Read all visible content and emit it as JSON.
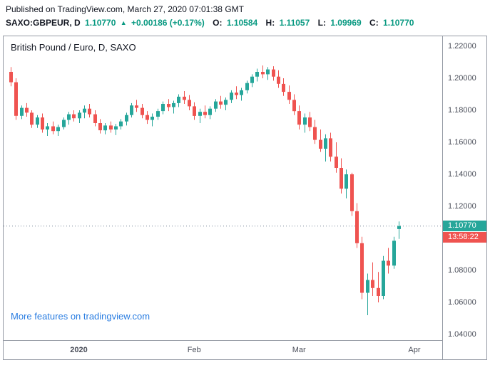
{
  "header": {
    "published_line": "Published on TradingView.com, March 27, 2020 07:01:38 GMT",
    "symbol_line": {
      "symbol": "SAXO:GBPEUR, D",
      "last_price": "1.10770",
      "direction_arrow": "▲",
      "change": "+0.00186 (+0.17%)",
      "ohlc": [
        {
          "label": "O:",
          "value": "1.10584"
        },
        {
          "label": "H:",
          "value": "1.11057"
        },
        {
          "label": "L:",
          "value": "1.09969"
        },
        {
          "label": "C:",
          "value": "1.10770"
        }
      ]
    }
  },
  "chart": {
    "title": "British Pound / Euro, D, SAXO",
    "watermark": "More features on tradingview.com",
    "last_price_label": "1.10770",
    "countdown": "13:58:22",
    "colors": {
      "up": "#26a69a",
      "down": "#ef5350",
      "teal_text": "#089981",
      "price_line": "#758696",
      "watermark": "#2a7de1",
      "axis_text": "#4a4e59",
      "border": "#959aa4"
    }
  },
  "chart_data": {
    "type": "candlestick",
    "title": "British Pound / Euro, D, SAXO",
    "symbol": "GBP/EUR",
    "interval": "D",
    "exchange": "SAXO",
    "ylim": [
      1.04,
      1.22
    ],
    "y_ticks": [
      1.04,
      1.06,
      1.08,
      1.1,
      1.12,
      1.14,
      1.16,
      1.18,
      1.2,
      1.22
    ],
    "x_ticks": [
      {
        "label": "2020",
        "index": 13,
        "major": true
      },
      {
        "label": "Feb",
        "index": 35,
        "major": false
      },
      {
        "label": "Mar",
        "index": 55,
        "major": false
      },
      {
        "label": "Apr",
        "index": 77,
        "major": false
      }
    ],
    "grid": false,
    "legend": false,
    "last_close": 1.1077,
    "candles": [
      [
        1.204,
        1.207,
        1.195,
        1.1975
      ],
      [
        1.1975,
        1.2,
        1.174,
        1.1765
      ],
      [
        1.1765,
        1.183,
        1.1745,
        1.1815
      ],
      [
        1.1815,
        1.1845,
        1.176,
        1.1785
      ],
      [
        1.1785,
        1.18,
        1.169,
        1.171
      ],
      [
        1.171,
        1.177,
        1.169,
        1.1755
      ],
      [
        1.1755,
        1.178,
        1.166,
        1.168
      ],
      [
        1.168,
        1.172,
        1.164,
        1.17
      ],
      [
        1.17,
        1.173,
        1.165,
        1.167
      ],
      [
        1.167,
        1.171,
        1.164,
        1.1695
      ],
      [
        1.1695,
        1.1755,
        1.168,
        1.174
      ],
      [
        1.174,
        1.179,
        1.171,
        1.1775
      ],
      [
        1.1775,
        1.18,
        1.173,
        1.175
      ],
      [
        1.175,
        1.18,
        1.172,
        1.1785
      ],
      [
        1.1785,
        1.183,
        1.175,
        1.181
      ],
      [
        1.181,
        1.184,
        1.1755,
        1.1775
      ],
      [
        1.1775,
        1.18,
        1.17,
        1.172
      ],
      [
        1.172,
        1.1745,
        1.1655,
        1.1675
      ],
      [
        1.1675,
        1.172,
        1.165,
        1.1705
      ],
      [
        1.1705,
        1.173,
        1.166,
        1.168
      ],
      [
        1.168,
        1.1715,
        1.1645,
        1.17
      ],
      [
        1.17,
        1.1745,
        1.168,
        1.173
      ],
      [
        1.173,
        1.1785,
        1.1705,
        1.177
      ],
      [
        1.177,
        1.1845,
        1.1755,
        1.183
      ],
      [
        1.183,
        1.1865,
        1.179,
        1.1815
      ],
      [
        1.1815,
        1.184,
        1.175,
        1.177
      ],
      [
        1.177,
        1.1795,
        1.1715,
        1.174
      ],
      [
        1.174,
        1.178,
        1.17,
        1.176
      ],
      [
        1.176,
        1.181,
        1.174,
        1.1795
      ],
      [
        1.1795,
        1.1855,
        1.1775,
        1.184
      ],
      [
        1.184,
        1.187,
        1.1795,
        1.182
      ],
      [
        1.182,
        1.186,
        1.178,
        1.1845
      ],
      [
        1.1845,
        1.19,
        1.182,
        1.1885
      ],
      [
        1.1885,
        1.192,
        1.184,
        1.1865
      ],
      [
        1.1865,
        1.1895,
        1.18,
        1.1825
      ],
      [
        1.1825,
        1.185,
        1.174,
        1.1765
      ],
      [
        1.1765,
        1.181,
        1.172,
        1.179
      ],
      [
        1.179,
        1.183,
        1.175,
        1.177
      ],
      [
        1.177,
        1.1825,
        1.1745,
        1.181
      ],
      [
        1.181,
        1.187,
        1.179,
        1.1855
      ],
      [
        1.1855,
        1.189,
        1.181,
        1.1835
      ],
      [
        1.1835,
        1.188,
        1.18,
        1.1865
      ],
      [
        1.1865,
        1.1925,
        1.1845,
        1.191
      ],
      [
        1.191,
        1.195,
        1.187,
        1.1895
      ],
      [
        1.1895,
        1.194,
        1.186,
        1.1925
      ],
      [
        1.1925,
        1.1985,
        1.1905,
        1.197
      ],
      [
        1.197,
        1.2025,
        1.1945,
        1.201
      ],
      [
        1.201,
        1.206,
        1.198,
        1.204
      ],
      [
        1.204,
        1.208,
        1.2,
        1.2025
      ],
      [
        1.2025,
        1.207,
        1.199,
        1.2055
      ],
      [
        1.2055,
        1.2075,
        1.1985,
        1.201
      ],
      [
        1.201,
        1.205,
        1.194,
        1.1965
      ],
      [
        1.1965,
        1.2,
        1.189,
        1.1915
      ],
      [
        1.1915,
        1.1955,
        1.184,
        1.1865
      ],
      [
        1.1865,
        1.19,
        1.177,
        1.1795
      ],
      [
        1.1795,
        1.183,
        1.168,
        1.171
      ],
      [
        1.171,
        1.178,
        1.166,
        1.1755
      ],
      [
        1.1755,
        1.179,
        1.167,
        1.1695
      ],
      [
        1.1695,
        1.174,
        1.159,
        1.1615
      ],
      [
        1.1615,
        1.168,
        1.154,
        1.156
      ],
      [
        1.156,
        1.165,
        1.148,
        1.1625
      ],
      [
        1.1625,
        1.166,
        1.148,
        1.151
      ],
      [
        1.151,
        1.16,
        1.141,
        1.144
      ],
      [
        1.144,
        1.15,
        1.128,
        1.131
      ],
      [
        1.131,
        1.143,
        1.125,
        1.14
      ],
      [
        1.14,
        1.141,
        1.114,
        1.117
      ],
      [
        1.117,
        1.122,
        1.094,
        1.097
      ],
      [
        1.097,
        1.101,
        1.062,
        1.066
      ],
      [
        1.066,
        1.078,
        1.052,
        1.074
      ],
      [
        1.074,
        1.085,
        1.064,
        1.069
      ],
      [
        1.069,
        1.079,
        1.06,
        1.064
      ],
      [
        1.064,
        1.089,
        1.062,
        1.086
      ],
      [
        1.086,
        1.094,
        1.078,
        1.083
      ],
      [
        1.083,
        1.101,
        1.081,
        1.0985
      ],
      [
        1.10584,
        1.11057,
        1.09969,
        1.1077
      ]
    ]
  }
}
